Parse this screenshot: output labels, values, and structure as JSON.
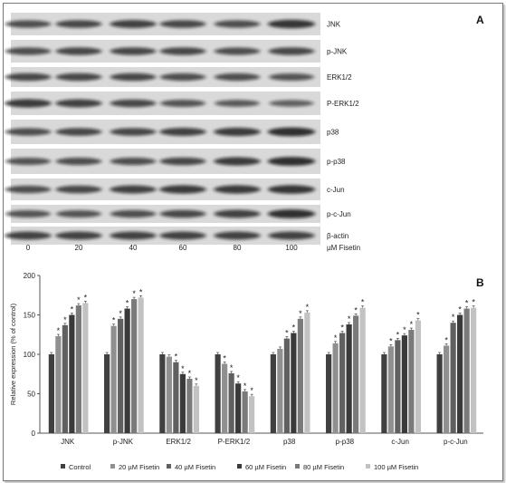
{
  "panel_a": {
    "label": "A",
    "blots": [
      {
        "name": "JNK",
        "bands": [
          0.55,
          0.6,
          0.65,
          0.6,
          0.55,
          0.75
        ]
      },
      {
        "name": "p-JNK",
        "bands": [
          0.55,
          0.6,
          0.6,
          0.6,
          0.55,
          0.6
        ]
      },
      {
        "name": "ERK1/2",
        "bands": [
          0.6,
          0.6,
          0.6,
          0.55,
          0.55,
          0.5
        ]
      },
      {
        "name": "P-ERK1/2",
        "bands": [
          0.7,
          0.65,
          0.6,
          0.5,
          0.45,
          0.4
        ]
      },
      {
        "name": "p38",
        "bands": [
          0.55,
          0.6,
          0.6,
          0.65,
          0.7,
          0.8
        ]
      },
      {
        "name": "p-p38",
        "bands": [
          0.5,
          0.55,
          0.55,
          0.6,
          0.7,
          0.8
        ]
      },
      {
        "name": "c-Jun",
        "bands": [
          0.55,
          0.6,
          0.65,
          0.7,
          0.7,
          0.75
        ]
      },
      {
        "name": "p-c-Jun",
        "bands": [
          0.5,
          0.5,
          0.55,
          0.6,
          0.65,
          0.8
        ]
      },
      {
        "name": "β-actin",
        "bands": [
          0.65,
          0.65,
          0.65,
          0.65,
          0.65,
          0.65
        ]
      }
    ],
    "doses": [
      "0",
      "20",
      "40",
      "60",
      "80",
      "100"
    ],
    "dose_label": "µM Fisetin"
  },
  "chart_data": {
    "type": "bar",
    "panel_label": "B",
    "ylabel": "Relative expression (% of control)",
    "ylim": [
      0,
      200
    ],
    "yticks": [
      0,
      50,
      100,
      150,
      200
    ],
    "categories": [
      "JNK",
      "p-JNK",
      "ERK1/2",
      "P-ERK1/2",
      "p38",
      "p-p38",
      "c-Jun",
      "p-c-Jun"
    ],
    "series": [
      {
        "name": "Control",
        "color": "#404040",
        "values": [
          100,
          100,
          100,
          100,
          100,
          100,
          100,
          100
        ]
      },
      {
        "name": "20 µM Fisetin",
        "color": "#909090",
        "values": [
          123,
          136,
          97,
          88,
          107,
          114,
          110,
          111
        ]
      },
      {
        "name": "40 µM Fisetin",
        "color": "#606060",
        "values": [
          137,
          145,
          90,
          76,
          120,
          127,
          118,
          140
        ]
      },
      {
        "name": "60 µM Fisetin",
        "color": "#3a3a3a",
        "values": [
          150,
          158,
          75,
          63,
          127,
          138,
          124,
          150
        ]
      },
      {
        "name": "80 µM Fisetin",
        "color": "#7a7a7a",
        "values": [
          162,
          170,
          69,
          53,
          145,
          149,
          131,
          158
        ]
      },
      {
        "name": "100 µM Fisetin",
        "color": "#c2c2c2",
        "values": [
          165,
          172,
          60,
          47,
          153,
          159,
          143,
          159
        ]
      }
    ],
    "significance_marker": "*",
    "significant": [
      [
        false,
        false,
        false,
        false,
        false,
        false,
        false,
        false
      ],
      [
        true,
        true,
        false,
        true,
        false,
        true,
        true,
        true
      ],
      [
        true,
        true,
        true,
        true,
        true,
        true,
        true,
        true
      ],
      [
        true,
        true,
        true,
        true,
        true,
        true,
        true,
        true
      ],
      [
        true,
        true,
        true,
        true,
        true,
        true,
        true,
        true
      ],
      [
        true,
        true,
        true,
        true,
        true,
        true,
        true,
        true
      ]
    ],
    "legend_position": "bottom"
  }
}
